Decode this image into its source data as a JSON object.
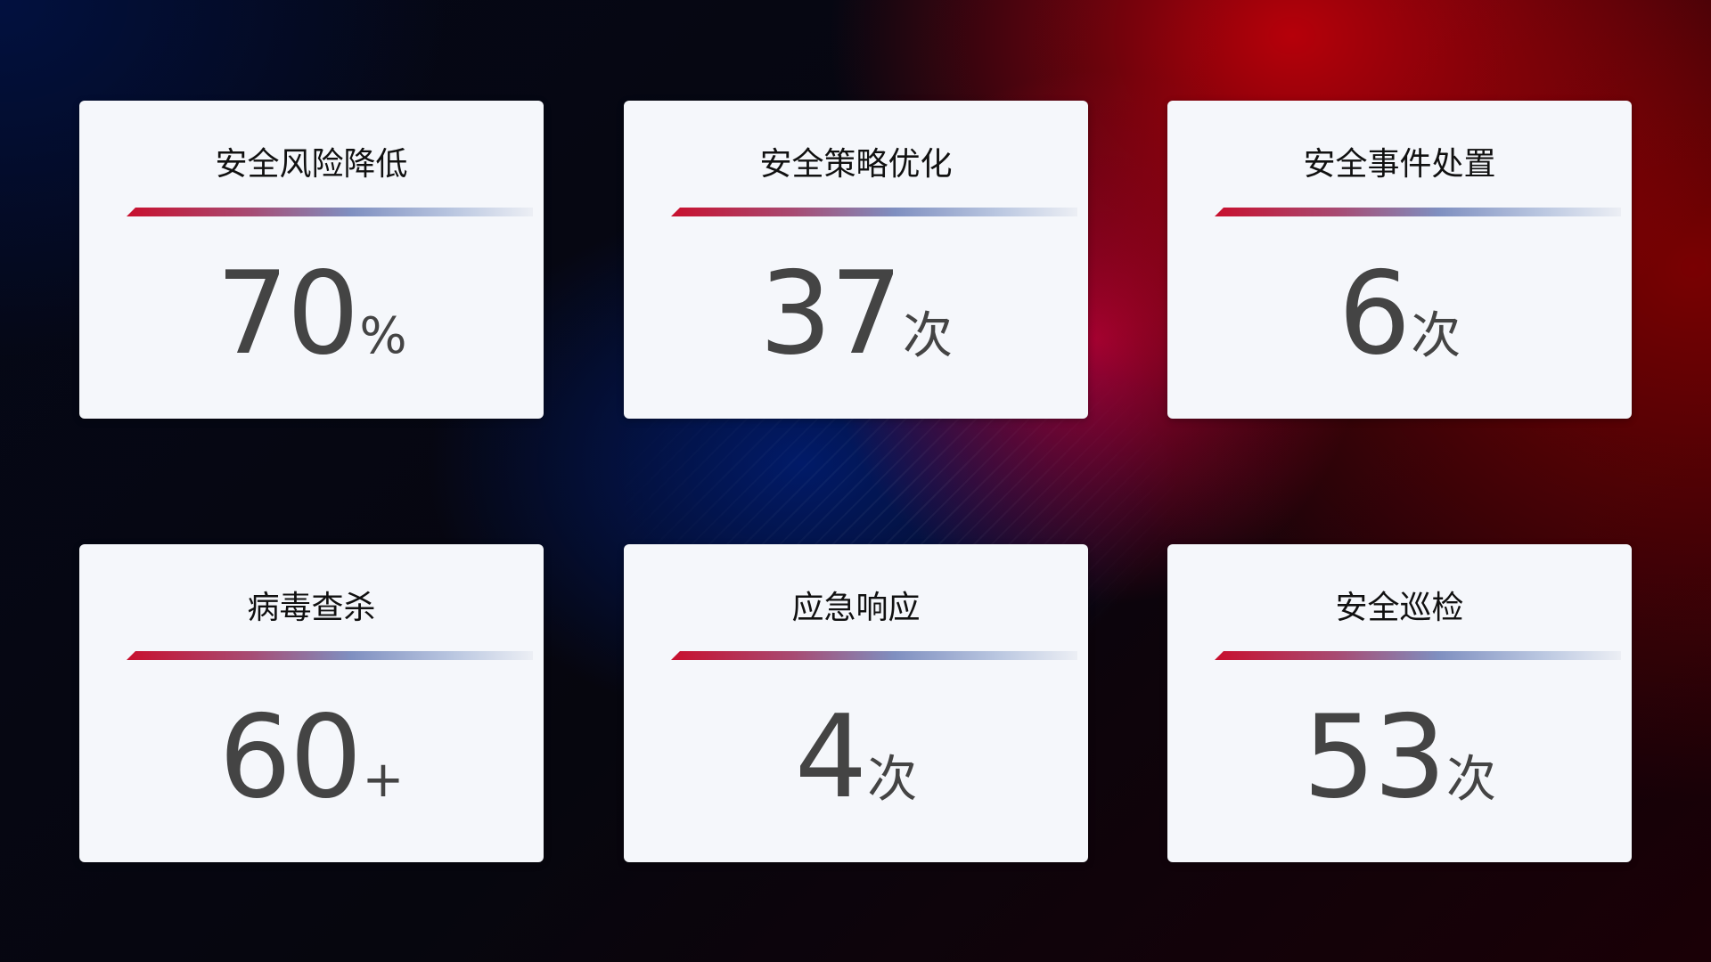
{
  "cards": [
    {
      "title": "安全风险降低",
      "value": "70",
      "unit": "%"
    },
    {
      "title": "安全策略优化",
      "value": "37",
      "unit": "次"
    },
    {
      "title": "安全事件处置",
      "value": "6",
      "unit": "次"
    },
    {
      "title": "病毒查杀",
      "value": "60",
      "unit": "+"
    },
    {
      "title": "应急响应",
      "value": "4",
      "unit": "次"
    },
    {
      "title": "安全巡检",
      "value": "53",
      "unit": "次"
    }
  ],
  "colors": {
    "accent_red": "#c8102e",
    "accent_blue": "#7f8fc0",
    "card_bg": "#f5f7fb",
    "value_text": "#444444"
  }
}
